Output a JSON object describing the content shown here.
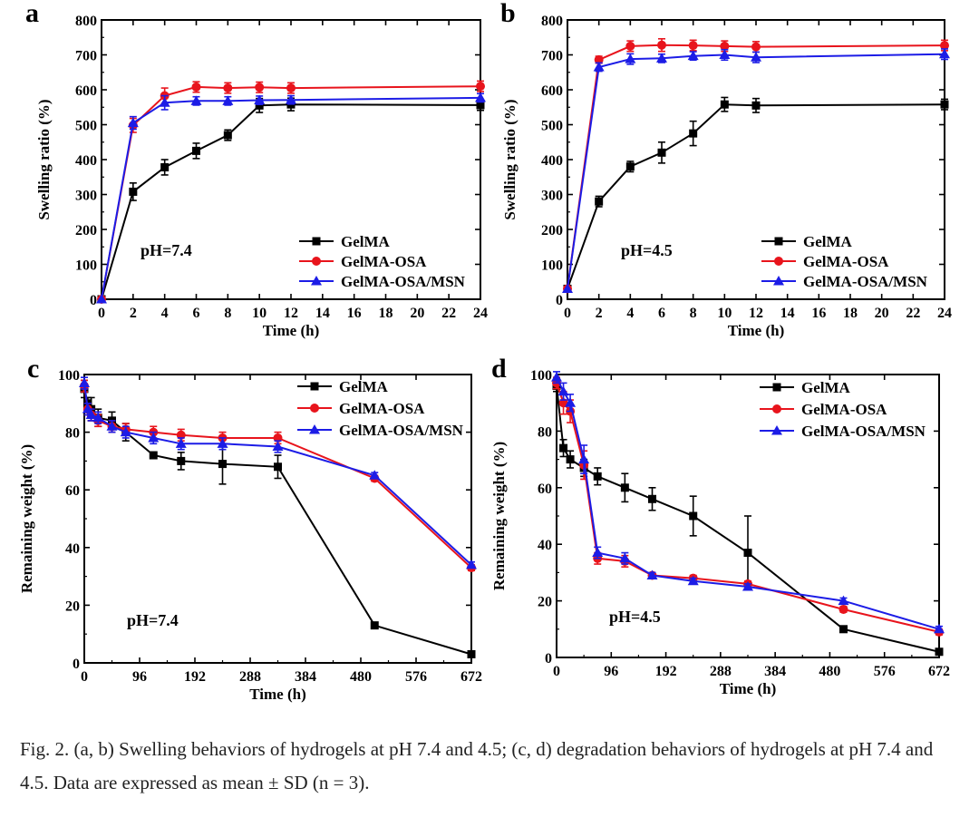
{
  "caption": "Fig. 2. (a, b) Swelling behaviors of hydrogels at pH 7.4 and 4.5; (c, d) degradation behaviors of hydrogels at pH 7.4 and 4.5. Data are expressed as mean ± SD (n = 3).",
  "colors": {
    "GelMA": "#000000",
    "GelMA-OSA": "#e8141c",
    "GelMA-OSA/MSN": "#1c1ce6"
  },
  "chart_data": [
    {
      "panel": "a",
      "type": "line",
      "xlabel": "Time (h)",
      "ylabel": "Swelling ratio (%)",
      "xlim": [
        0,
        24
      ],
      "ylim": [
        0,
        800
      ],
      "xticks": [
        0,
        2,
        4,
        6,
        8,
        10,
        12,
        14,
        16,
        18,
        20,
        22,
        24
      ],
      "yticks": [
        0,
        100,
        200,
        300,
        400,
        500,
        600,
        700,
        800
      ],
      "annotation": "pH=7.4",
      "legend_position": "bottom-right",
      "series": [
        {
          "name": "GelMA",
          "marker": "square",
          "x": [
            0,
            2,
            4,
            6,
            8,
            10,
            12,
            24
          ],
          "y": [
            0,
            308,
            378,
            425,
            470,
            555,
            558,
            556
          ],
          "err": [
            0,
            25,
            22,
            22,
            15,
            20,
            18,
            15
          ]
        },
        {
          "name": "GelMA-OSA",
          "marker": "circle",
          "x": [
            0,
            2,
            4,
            6,
            8,
            10,
            12,
            24
          ],
          "y": [
            0,
            498,
            583,
            608,
            605,
            607,
            605,
            610
          ],
          "err": [
            0,
            20,
            22,
            15,
            15,
            15,
            15,
            15
          ]
        },
        {
          "name": "GelMA-OSA/MSN",
          "marker": "triangle",
          "x": [
            0,
            2,
            4,
            6,
            8,
            10,
            12,
            24
          ],
          "y": [
            0,
            505,
            563,
            568,
            568,
            570,
            571,
            577
          ],
          "err": [
            0,
            18,
            20,
            12,
            12,
            12,
            12,
            12
          ]
        }
      ]
    },
    {
      "panel": "b",
      "type": "line",
      "xlabel": "Time (h)",
      "ylabel": "Swelling ratio (%)",
      "xlim": [
        0,
        24
      ],
      "ylim": [
        0,
        800
      ],
      "xticks": [
        0,
        2,
        4,
        6,
        8,
        10,
        12,
        14,
        16,
        18,
        20,
        22,
        24
      ],
      "yticks": [
        0,
        100,
        200,
        300,
        400,
        500,
        600,
        700,
        800
      ],
      "annotation": "pH=4.5",
      "legend_position": "bottom-right",
      "series": [
        {
          "name": "GelMA",
          "marker": "square",
          "x": [
            0,
            2,
            4,
            6,
            8,
            10,
            12,
            24
          ],
          "y": [
            30,
            280,
            380,
            420,
            475,
            558,
            555,
            558
          ],
          "err": [
            0,
            15,
            15,
            30,
            35,
            20,
            20,
            15
          ]
        },
        {
          "name": "GelMA-OSA",
          "marker": "circle",
          "x": [
            0,
            2,
            4,
            6,
            8,
            10,
            12,
            24
          ],
          "y": [
            30,
            686,
            725,
            728,
            727,
            725,
            723,
            727
          ],
          "err": [
            0,
            10,
            15,
            18,
            15,
            15,
            15,
            15
          ]
        },
        {
          "name": "GelMA-OSA/MSN",
          "marker": "triangle",
          "x": [
            0,
            2,
            4,
            6,
            8,
            10,
            12,
            24
          ],
          "y": [
            30,
            665,
            688,
            690,
            697,
            700,
            693,
            702
          ],
          "err": [
            0,
            12,
            15,
            12,
            12,
            15,
            15,
            15
          ]
        }
      ]
    },
    {
      "panel": "c",
      "type": "line",
      "xlabel": "Time (h)",
      "ylabel": "Remaining weight (%)",
      "xlim": [
        0,
        672
      ],
      "ylim": [
        0,
        100
      ],
      "xticks": [
        0,
        96,
        192,
        288,
        384,
        480,
        576,
        672
      ],
      "yticks": [
        0,
        20,
        40,
        60,
        80,
        100
      ],
      "annotation": "pH=7.4",
      "legend_position": "top-right",
      "series": [
        {
          "name": "GelMA",
          "marker": "square",
          "x": [
            0,
            6,
            12,
            24,
            48,
            72,
            120,
            168,
            240,
            336,
            504,
            672
          ],
          "y": [
            95,
            90,
            88,
            85,
            84,
            80,
            72,
            70,
            69,
            68,
            13,
            3
          ],
          "err": [
            3,
            2,
            4,
            3,
            3,
            3,
            1,
            3,
            7,
            4,
            1,
            1
          ]
        },
        {
          "name": "GelMA-OSA",
          "marker": "circle",
          "x": [
            0,
            6,
            12,
            24,
            48,
            72,
            120,
            168,
            240,
            336,
            504,
            672
          ],
          "y": [
            96,
            88,
            86,
            84,
            82,
            81,
            80,
            79,
            78,
            78,
            64,
            33
          ],
          "err": [
            2,
            2,
            2,
            2,
            2,
            2,
            2,
            2,
            2,
            2,
            1,
            1
          ]
        },
        {
          "name": "GelMA-OSA/MSN",
          "marker": "triangle",
          "x": [
            0,
            6,
            12,
            24,
            48,
            72,
            120,
            168,
            240,
            336,
            504,
            672
          ],
          "y": [
            97,
            88,
            86,
            85,
            82,
            80,
            78,
            76,
            76,
            75,
            65,
            34
          ],
          "err": [
            2,
            2,
            2,
            2,
            2,
            2,
            2,
            2,
            2,
            2,
            1,
            1
          ]
        }
      ]
    },
    {
      "panel": "d",
      "type": "line",
      "xlabel": "Time (h)",
      "ylabel": "Remaining weight (%)",
      "xlim": [
        0,
        672
      ],
      "ylim": [
        0,
        100
      ],
      "xticks": [
        0,
        96,
        192,
        288,
        384,
        480,
        576,
        672
      ],
      "yticks": [
        0,
        20,
        40,
        60,
        80,
        100
      ],
      "annotation": "pH=4.5",
      "legend_position": "top-right",
      "series": [
        {
          "name": "GelMA",
          "marker": "square",
          "x": [
            0,
            12,
            24,
            48,
            72,
            120,
            168,
            240,
            336,
            504,
            672
          ],
          "y": [
            96,
            74,
            70,
            67,
            64,
            60,
            56,
            50,
            37,
            10,
            2
          ],
          "err": [
            2,
            3,
            3,
            3,
            3,
            5,
            4,
            7,
            13,
            1,
            1
          ]
        },
        {
          "name": "GelMA-OSA",
          "marker": "circle",
          "x": [
            0,
            12,
            24,
            48,
            72,
            120,
            168,
            240,
            336,
            504,
            672
          ],
          "y": [
            97,
            90,
            87,
            68,
            35,
            34,
            29,
            28,
            26,
            17,
            9
          ],
          "err": [
            2,
            4,
            4,
            5,
            2,
            2,
            1,
            1,
            1,
            1,
            1
          ]
        },
        {
          "name": "GelMA-OSA/MSN",
          "marker": "triangle",
          "x": [
            0,
            12,
            24,
            48,
            72,
            120,
            168,
            240,
            336,
            504,
            672
          ],
          "y": [
            99,
            94,
            90,
            70,
            37,
            35,
            29,
            27,
            25,
            20,
            10
          ],
          "err": [
            2,
            3,
            3,
            5,
            2,
            2,
            1,
            1,
            1,
            1,
            1
          ]
        }
      ]
    }
  ]
}
